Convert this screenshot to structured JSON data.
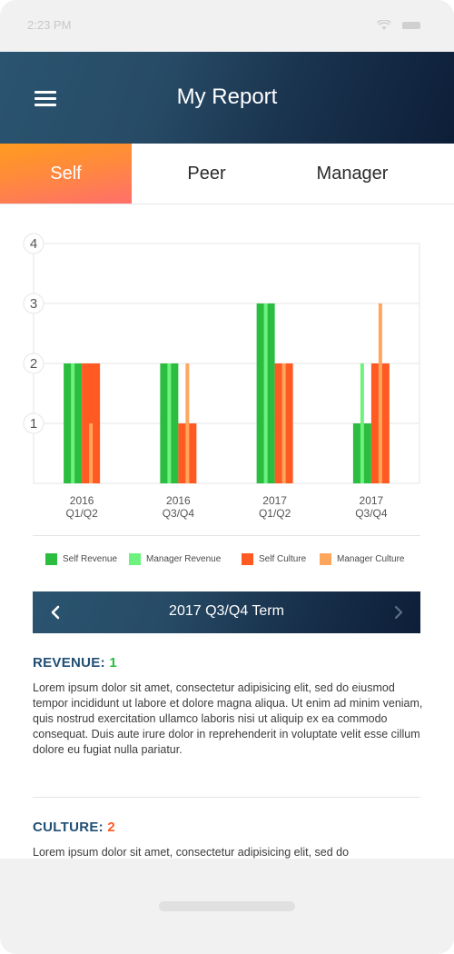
{
  "status_bar": {
    "time": "2:23 PM"
  },
  "app_bar": {
    "title": "My Report",
    "menu_icon": "hamburger-menu-icon"
  },
  "tabs": [
    {
      "label": "Self",
      "active": true
    },
    {
      "label": "Peer",
      "active": false
    },
    {
      "label": "Manager",
      "active": false
    }
  ],
  "chart_data": {
    "type": "bar",
    "categories": [
      "2016\nQ1/Q2",
      "2016\nQ3/Q4",
      "2017\nQ1/Q2",
      "2017\nQ3/Q4"
    ],
    "category_lines": [
      [
        "2016",
        "Q1/Q2"
      ],
      [
        "2016",
        "Q3/Q4"
      ],
      [
        "2017",
        "Q1/Q2"
      ],
      [
        "2017",
        "Q3/Q4"
      ]
    ],
    "yticks": [
      1,
      2,
      3,
      4
    ],
    "ylim": [
      0,
      4
    ],
    "series": [
      {
        "name": "Self Revenue",
        "color": "#2bbd40",
        "values": [
          2,
          2,
          3,
          1
        ]
      },
      {
        "name": "Manager Revenue",
        "color": "#6cf27d",
        "values": [
          2,
          2,
          3,
          2
        ]
      },
      {
        "name": "Self Culture",
        "color": "#ff5a22",
        "values": [
          2,
          1,
          2,
          2
        ]
      },
      {
        "name": "Manager Culture",
        "color": "#ffa65e",
        "values": [
          1,
          2,
          2,
          3
        ]
      }
    ],
    "legend_position": "bottom",
    "grid": true
  },
  "term": {
    "label": "2017 Q3/Q4 Term"
  },
  "revenue": {
    "heading": "REVENUE:",
    "score": "1",
    "text": "Lorem ipsum dolor sit amet, consectetur adipisicing elit, sed do eiusmod tempor incididunt ut labore et dolore magna aliqua. Ut enim ad minim veniam, quis nostrud exercitation ullamco laboris nisi ut aliquip ex ea commodo consequat. Duis aute irure dolor in reprehenderit in voluptate velit esse cillum dolore eu fugiat nulla pariatur."
  },
  "culture": {
    "heading": "CULTURE:",
    "score": "2",
    "text": "Lorem ipsum dolor sit amet, consectetur adipisicing elit, sed do"
  }
}
